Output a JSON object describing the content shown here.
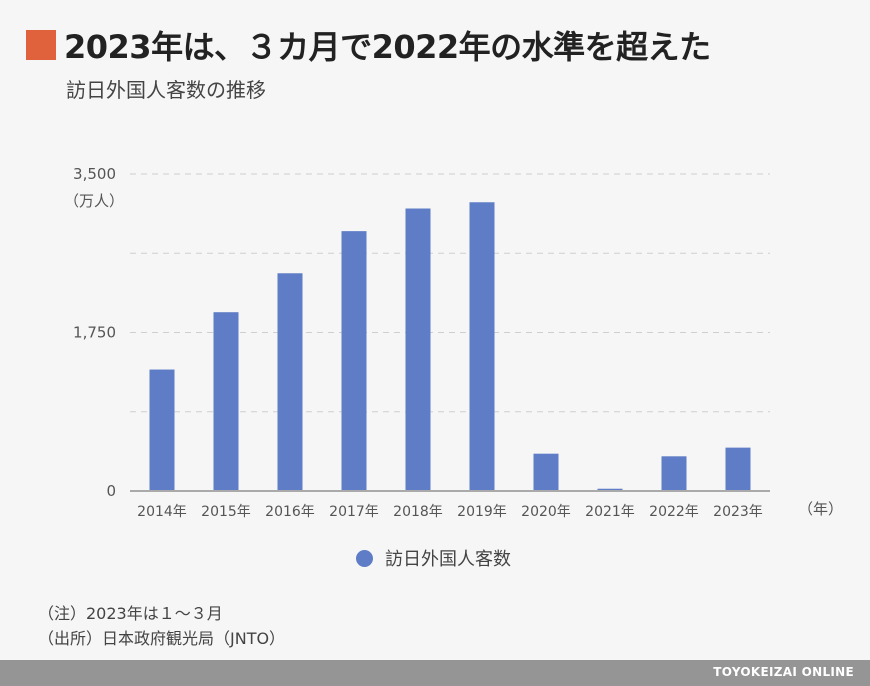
{
  "title": "2023年は、３カ月で2022年の水準を超えた",
  "subtitle": "訪日外国人客数の推移",
  "colors": {
    "accent": "#e0623c",
    "bar": "#5e7dc6",
    "footer": "#959595"
  },
  "chart_data": {
    "type": "bar",
    "categories": [
      "2014年",
      "2015年",
      "2016年",
      "2017年",
      "2018年",
      "2019年",
      "2020年",
      "2021年",
      "2022年",
      "2023年"
    ],
    "series": [
      {
        "name": "訪日外国人客数",
        "values": [
          1341,
          1974,
          2404,
          2869,
          3119,
          3188,
          412,
          25,
          383,
          479
        ]
      }
    ],
    "ylim": [
      0,
      3500
    ],
    "yticks": [
      0,
      1750,
      3500
    ],
    "ytick_labels": [
      "0",
      "1,750",
      "3,500"
    ],
    "ylabel": "（万人）",
    "xlabel": "（年）",
    "grid": true,
    "legend": "bottom"
  },
  "notes": [
    "（注）2023年は１～３月",
    "（出所）日本政府観光局（JNTO）"
  ],
  "footer": "TOYOKEIZAI ONLINE"
}
